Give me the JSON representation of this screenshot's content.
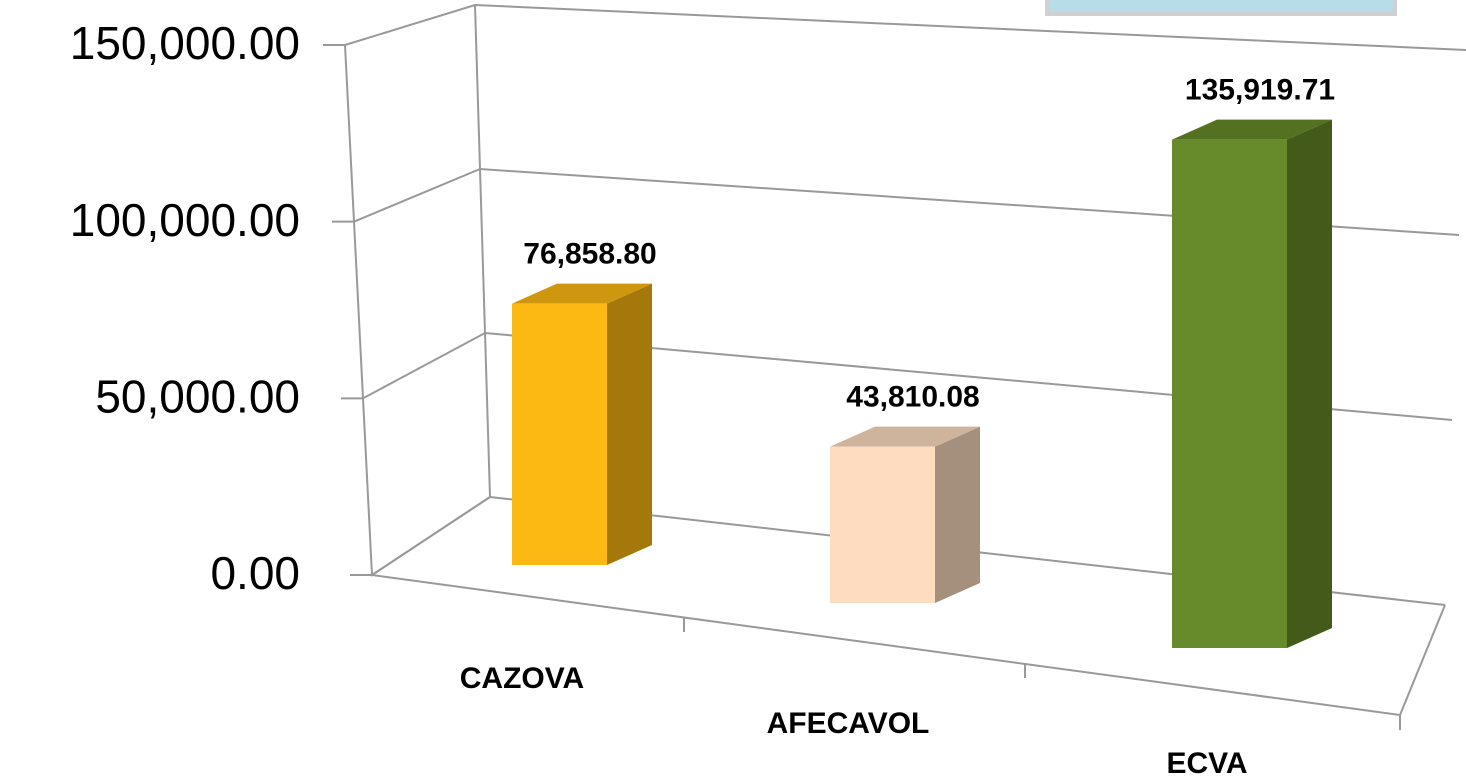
{
  "chart_data": {
    "type": "bar3d",
    "categories": [
      "CAZOVA",
      "AFECAVOL",
      "ECVA"
    ],
    "values": [
      76858.8,
      43810.08,
      135919.71
    ],
    "value_labels": [
      "76,858.80",
      "43,810.08",
      "135,919.71"
    ],
    "colors": [
      "#fdb913",
      "#fddcc0",
      "#678a2a"
    ],
    "ylim": [
      0,
      150000
    ],
    "yticks": [
      {
        "value": 0,
        "label": "0.00"
      },
      {
        "value": 50000,
        "label": "50,000.00"
      },
      {
        "value": 100000,
        "label": "100,000.00"
      },
      {
        "value": 150000,
        "label": "150,000.00"
      }
    ],
    "grid": true
  }
}
